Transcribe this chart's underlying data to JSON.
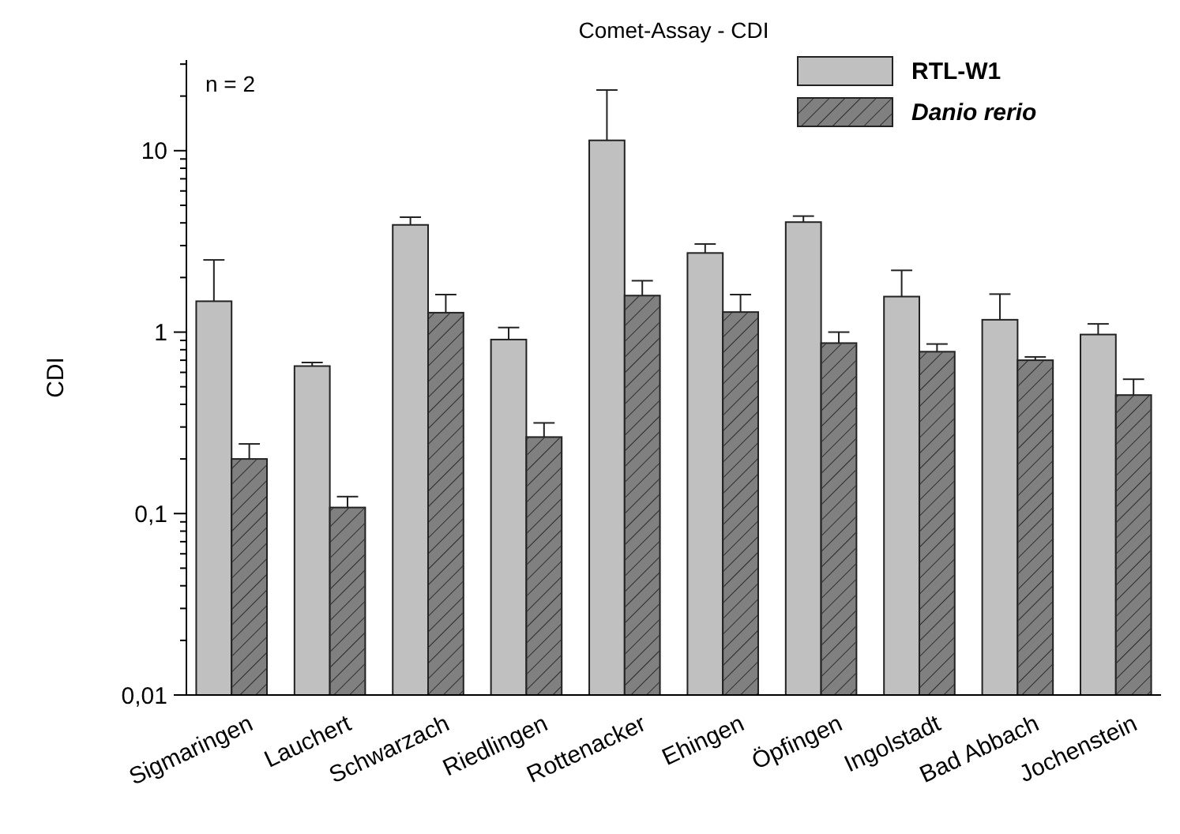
{
  "chart_data": {
    "type": "bar",
    "title": "Comet-Assay - CDI",
    "ylabel": "CDI",
    "log": "y",
    "categories": [
      "Sigmaringen",
      "Lauchert",
      "Schwarzach",
      "Riedlingen",
      "Rottenacker",
      "Ehingen",
      "Öpfingen",
      "Ingolstadt",
      "Bad Abbach",
      "Jochenstein"
    ],
    "series": [
      {
        "name": "RTL-W1",
        "color": "#c0c0c0",
        "values": [
          1.48,
          0.65,
          3.9,
          0.91,
          11.4,
          2.73,
          4.04,
          1.57,
          1.17,
          0.97
        ],
        "errors": [
          [
            1.48,
            2.5
          ],
          [
            0.65,
            0.68
          ],
          [
            3.9,
            4.3
          ],
          [
            0.91,
            1.06
          ],
          [
            11.4,
            21.6
          ],
          [
            2.73,
            3.06
          ],
          [
            4.04,
            4.36
          ],
          [
            1.57,
            2.19
          ],
          [
            1.17,
            1.62
          ],
          [
            0.97,
            1.11
          ]
        ]
      },
      {
        "name": "Danio rerio",
        "color": "#808080",
        "values": [
          0.2,
          0.108,
          1.28,
          0.264,
          1.59,
          1.29,
          0.87,
          0.78,
          0.7,
          0.45
        ],
        "errors": [
          [
            0.2,
            0.242
          ],
          [
            0.108,
            0.124
          ],
          [
            1.28,
            1.61
          ],
          [
            0.264,
            0.316
          ],
          [
            1.59,
            1.92
          ],
          [
            1.29,
            1.61
          ],
          [
            0.87,
            1.0
          ],
          [
            0.78,
            0.86
          ],
          [
            0.7,
            0.73
          ],
          [
            0.45,
            0.55
          ]
        ]
      }
    ],
    "ylim": [
      0.01,
      31.6
    ],
    "yticks": [
      {
        "value": 0.01,
        "label": "0,01"
      },
      {
        "value": 0.1,
        "label": "0,1"
      },
      1,
      10
    ],
    "legend": "top right",
    "grid": false,
    "annotations": [
      "n = 2"
    ]
  }
}
